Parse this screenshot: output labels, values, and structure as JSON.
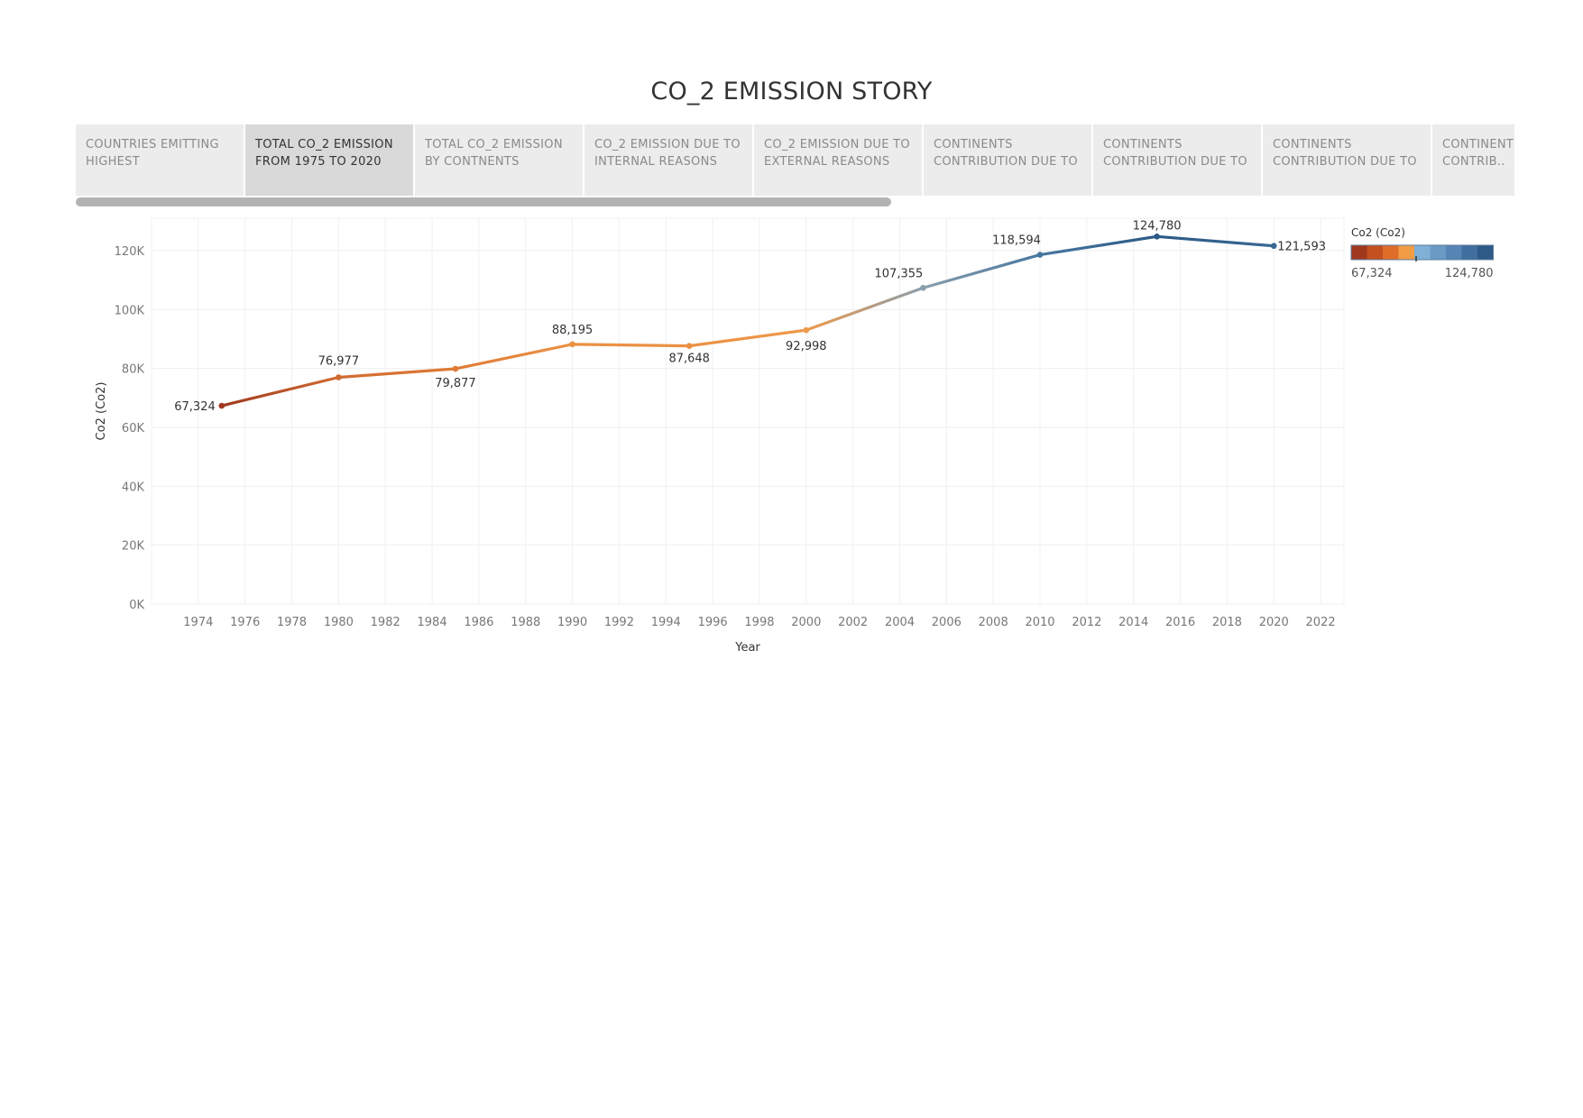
{
  "story": {
    "title": "CO_2 EMISSION STORY",
    "tabs": [
      {
        "label": "COUNTRIES EMITTING HIGHEST",
        "active": false
      },
      {
        "label": "TOTAL CO_2 EMISSION FROM 1975 TO 2020",
        "active": true
      },
      {
        "label": "TOTAL CO_2 EMISSION BY CONTNENTS",
        "active": false
      },
      {
        "label": "CO_2 EMISSION DUE TO INTERNAL REASONS",
        "active": false
      },
      {
        "label": "CO_2 EMISSION DUE TO EXTERNAL REASONS",
        "active": false
      },
      {
        "label": "CONTINENTS CONTRIBUTION DUE TO ..",
        "active": false
      },
      {
        "label": "CONTINENTS CONTRIBUTION DUE TO ..",
        "active": false
      },
      {
        "label": "CONTINENTS CONTRIBUTION DUE TO ..",
        "active": false
      },
      {
        "label": "CONTINENT S CONTRIB..",
        "active": false
      }
    ]
  },
  "chart_data": {
    "type": "line",
    "title": "",
    "xlabel": "Year",
    "ylabel": "Co2 (Co2)",
    "x": [
      1975,
      1980,
      1985,
      1990,
      1995,
      2000,
      2005,
      2010,
      2015,
      2020
    ],
    "series": [
      {
        "values": [
          67324,
          76977,
          79877,
          88195,
          87648,
          92998,
          107355,
          118594,
          124780,
          121593
        ],
        "data_labels": [
          "67,324",
          "76,977",
          "79,877",
          "88,195",
          "87,648",
          "92,998",
          "107,355",
          "118,594",
          "124,780",
          "121,593"
        ]
      }
    ],
    "xlim": [
      1972,
      2023
    ],
    "ylim": [
      0,
      131000
    ],
    "x_ticks": [
      1974,
      1976,
      1978,
      1980,
      1982,
      1984,
      1986,
      1988,
      1990,
      1992,
      1994,
      1996,
      1998,
      2000,
      2002,
      2004,
      2006,
      2008,
      2010,
      2012,
      2014,
      2016,
      2018,
      2020,
      2022
    ],
    "y_ticks": [
      0,
      20000,
      40000,
      60000,
      80000,
      100000,
      120000
    ],
    "y_tick_labels": [
      "0K",
      "20K",
      "40K",
      "60K",
      "80K",
      "100K",
      "120K"
    ],
    "grid": true,
    "legend": {
      "title": "Co2 (Co2)",
      "placement": "top-right",
      "min_label": "67,324",
      "max_label": "124,780",
      "colors": [
        "#a0381e",
        "#c4501f",
        "#e06c2a",
        "#f29c45",
        "#7fb0d6",
        "#6a9bc5",
        "#5585b5",
        "#3f6e9f",
        "#2e5a87"
      ]
    },
    "color_scale": {
      "low": "#a0381e",
      "mid_low": "#e8853a",
      "mid": "#f0a050",
      "mid_high": "#6f9ec4",
      "high": "#2b5a85"
    }
  }
}
